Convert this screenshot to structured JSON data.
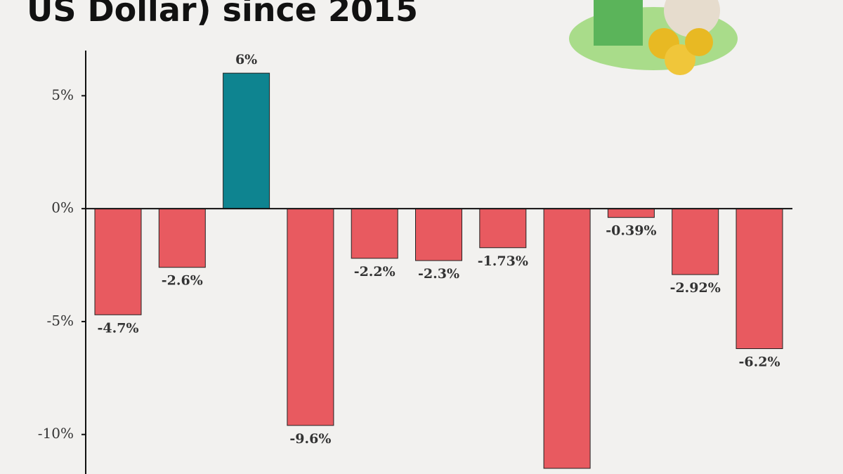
{
  "chart_data": {
    "type": "bar",
    "title": "US Dollar) since 2015",
    "categories": [
      null,
      null,
      null,
      null,
      null,
      null,
      null,
      null,
      null,
      null,
      null
    ],
    "values": [
      -4.7,
      -2.6,
      6,
      -9.6,
      -2.2,
      -2.3,
      -1.73,
      -11.5,
      -0.39,
      -2.92,
      -6.2
    ],
    "value_labels": [
      "-4.7%",
      "-2.6%",
      "6%",
      "-9.6%",
      "-2.2%",
      "-2.3%",
      "-1.73%",
      null,
      "-0.39%",
      "-2.92%",
      "-6.2%"
    ],
    "colors": {
      "positive": "#0e8490",
      "negative": "#e85a60"
    },
    "ylim": [
      -11.75,
      7
    ],
    "yticks": [
      {
        "value": -10,
        "label": "-10%"
      },
      {
        "value": -5,
        "label": "-5%"
      },
      {
        "value": 0,
        "label": "0%"
      },
      {
        "value": 5,
        "label": "5%"
      }
    ]
  }
}
